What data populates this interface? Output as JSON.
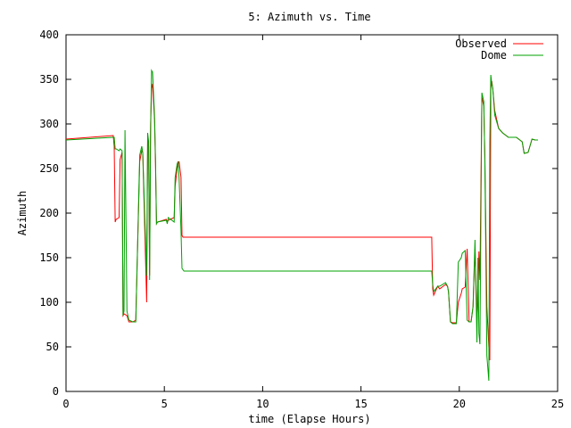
{
  "chart_data": {
    "type": "line",
    "title": "5: Azimuth vs. Time",
    "xlabel": "time (Elapse Hours)",
    "ylabel": "Azimuth",
    "xlim": [
      0,
      25
    ],
    "ylim": [
      0,
      400
    ],
    "x_ticks": [
      0,
      5,
      10,
      15,
      20,
      25
    ],
    "y_ticks": [
      0,
      50,
      100,
      150,
      200,
      250,
      300,
      350,
      400
    ],
    "grid": false,
    "legend_position": "top-right",
    "series": [
      {
        "name": "Observed",
        "color": "#ff0000",
        "x": [
          0,
          2.4,
          2.45,
          2.5,
          2.55,
          2.7,
          2.75,
          2.85,
          2.9,
          2.95,
          3.1,
          3.2,
          3.4,
          3.55,
          3.75,
          3.85,
          3.9,
          4.1,
          4.15,
          4.2,
          4.25,
          4.3,
          4.35,
          4.4,
          4.5,
          4.55,
          4.6,
          4.65,
          5.1,
          5.15,
          5.2,
          5.5,
          5.55,
          5.65,
          5.7,
          5.75,
          5.85,
          5.9,
          5.95,
          11.0,
          18.6,
          18.65,
          18.7,
          18.9,
          19.0,
          19.3,
          19.4,
          19.45,
          19.55,
          19.65,
          19.8,
          19.85,
          19.95,
          20.1,
          20.15,
          20.3,
          20.4,
          20.5,
          20.6,
          20.7,
          20.8,
          20.9,
          20.95,
          21.0,
          21.05,
          21.15,
          21.25,
          21.3,
          21.4,
          21.5,
          21.55,
          21.6,
          21.65,
          21.7,
          21.8,
          22.0,
          22.2,
          22.5,
          22.9,
          23.2,
          23.3,
          23.5,
          23.7,
          23.85,
          24.0
        ],
        "y": [
          283,
          287,
          275,
          190,
          193,
          195,
          260,
          268,
          85,
          87,
          85,
          78,
          78,
          80,
          258,
          270,
          268,
          100,
          285,
          275,
          130,
          300,
          340,
          345,
          305,
          255,
          188,
          190,
          193,
          190,
          192,
          195,
          230,
          250,
          255,
          258,
          240,
          175,
          173,
          173,
          173,
          115,
          108,
          118,
          115,
          120,
          118,
          112,
          78,
          77,
          77,
          77,
          100,
          110,
          115,
          117,
          160,
          78,
          78,
          95,
          160,
          80,
          100,
          157,
          125,
          330,
          320,
          260,
          95,
          50,
          35,
          340,
          348,
          340,
          315,
          295,
          290,
          285,
          285,
          280,
          267,
          268,
          283,
          282,
          282
        ]
      },
      {
        "name": "Dome",
        "color": "#00a000",
        "x": [
          0,
          2.4,
          2.45,
          2.5,
          2.55,
          2.7,
          2.75,
          2.85,
          2.9,
          2.95,
          3.0,
          3.1,
          3.2,
          3.4,
          3.55,
          3.75,
          3.85,
          3.9,
          4.1,
          4.15,
          4.2,
          4.25,
          4.3,
          4.35,
          4.4,
          4.5,
          4.55,
          4.6,
          4.65,
          5.1,
          5.15,
          5.2,
          5.5,
          5.55,
          5.65,
          5.7,
          5.75,
          5.85,
          5.9,
          6.0,
          11.0,
          18.6,
          18.65,
          18.7,
          18.9,
          19.0,
          19.3,
          19.4,
          19.45,
          19.55,
          19.65,
          19.8,
          19.85,
          19.95,
          20.1,
          20.15,
          20.3,
          20.4,
          20.5,
          20.6,
          20.7,
          20.8,
          20.9,
          20.95,
          21.0,
          21.05,
          21.15,
          21.25,
          21.3,
          21.4,
          21.5,
          21.55,
          21.6,
          21.65,
          21.7,
          21.8,
          22.0,
          22.2,
          22.5,
          22.9,
          23.2,
          23.3,
          23.5,
          23.7,
          23.85,
          24.0
        ],
        "y": [
          282,
          285,
          285,
          272,
          272,
          270,
          272,
          270,
          85,
          90,
          293,
          90,
          80,
          78,
          78,
          265,
          275,
          268,
          130,
          290,
          280,
          125,
          290,
          360,
          358,
          310,
          260,
          188,
          190,
          192,
          188,
          195,
          190,
          240,
          255,
          258,
          240,
          180,
          138,
          135,
          135,
          135,
          120,
          112,
          118,
          118,
          122,
          118,
          112,
          78,
          76,
          76,
          76,
          145,
          150,
          155,
          158,
          80,
          78,
          78,
          95,
          170,
          55,
          150,
          65,
          53,
          335,
          325,
          255,
          40,
          12,
          280,
          355,
          345,
          340,
          310,
          295,
          290,
          285,
          285,
          280,
          267,
          268,
          283,
          282,
          282
        ]
      }
    ]
  }
}
